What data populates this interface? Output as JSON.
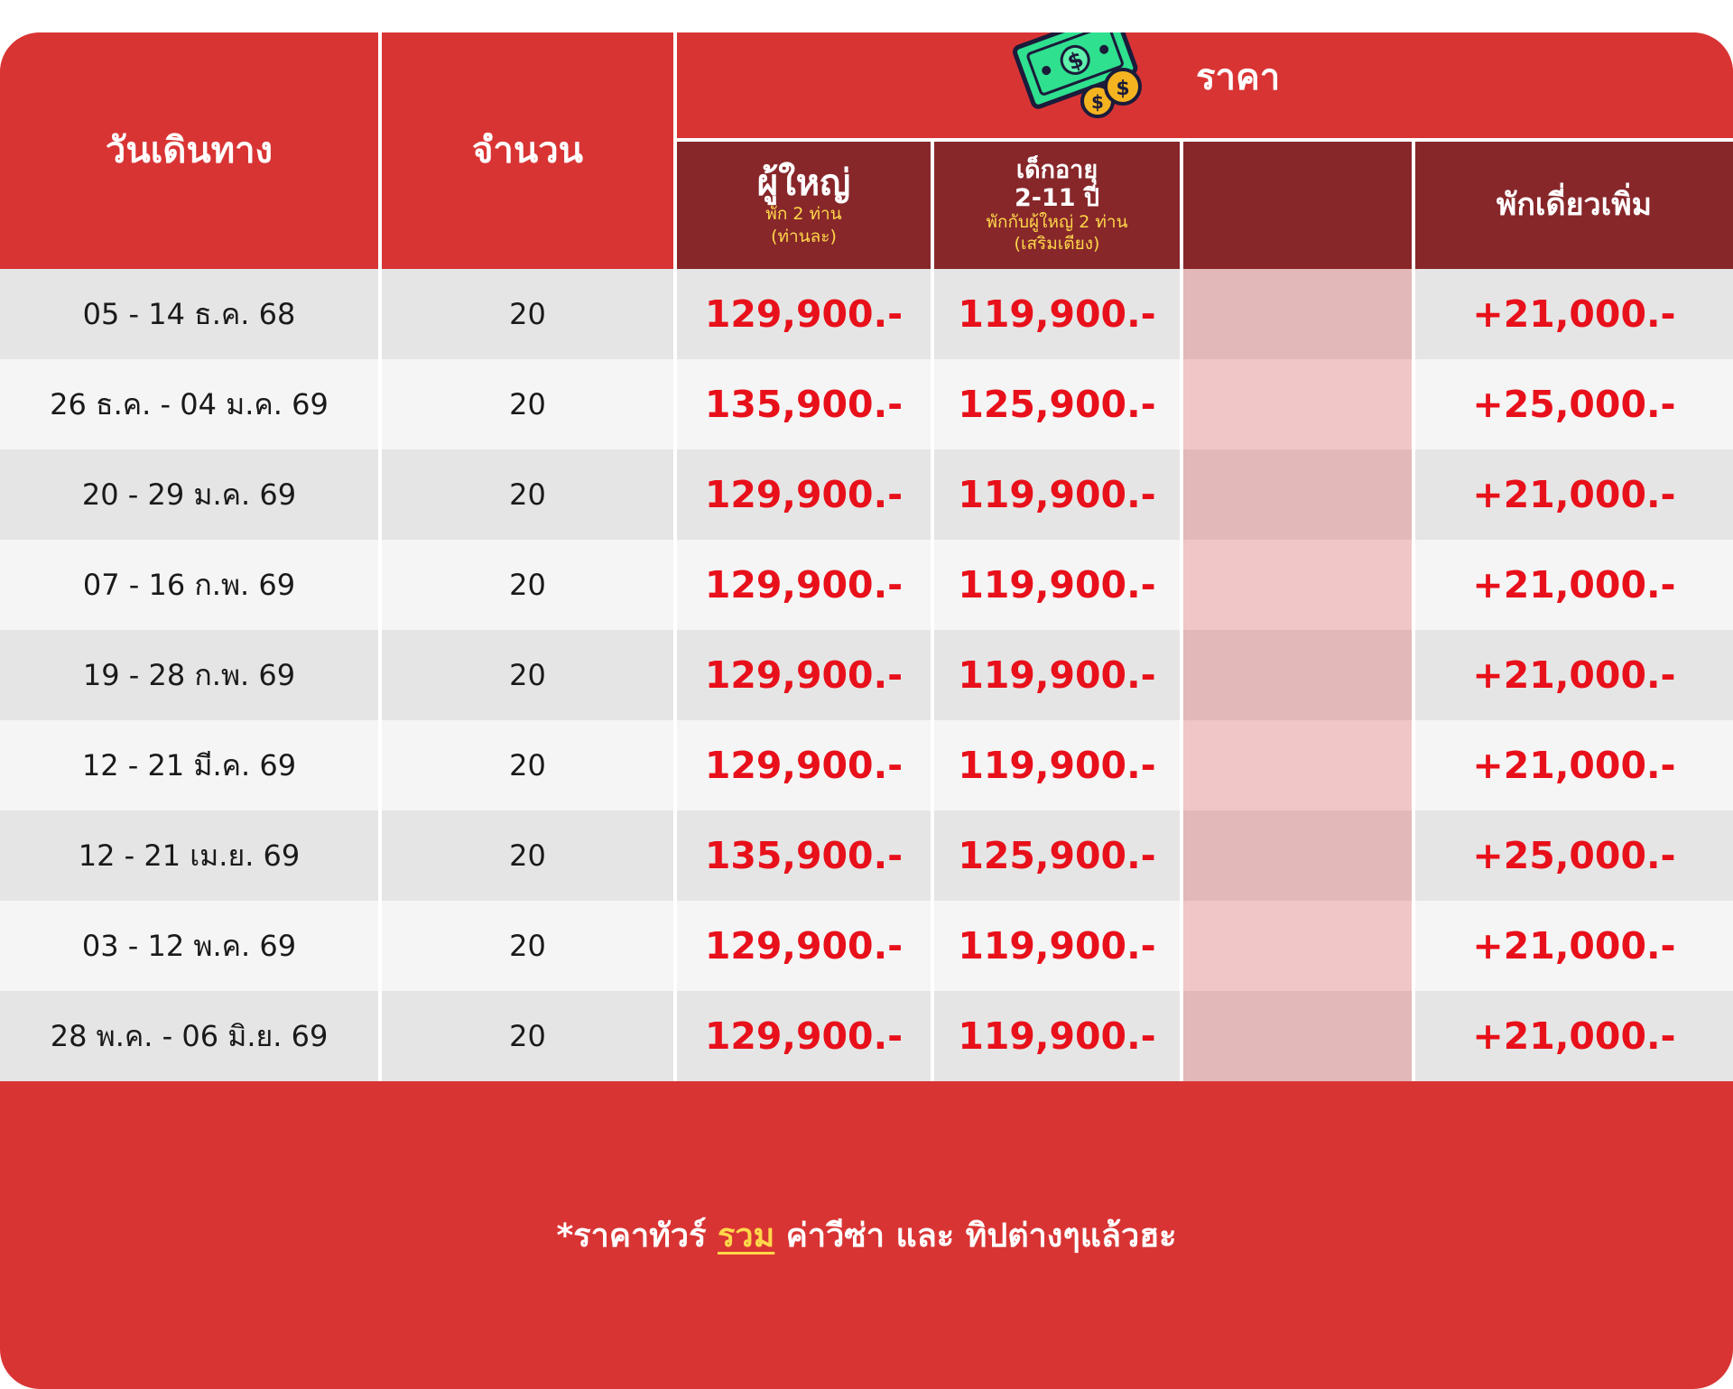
{
  "header": {
    "date_label": "วันเดินทาง",
    "seats_label": "จำนวน",
    "price_label": "ราคา",
    "adult": {
      "title": "ผู้ใหญ่",
      "line1": "พัก 2 ท่าน",
      "line2": "(ท่านละ)"
    },
    "child": {
      "title1": "เด็กอายุ",
      "title2": "2-11 ปี",
      "line1": "พักกับผู้ใหญ่ 2 ท่าน",
      "line2": "(เสริมเตียง)"
    },
    "blank": "",
    "single": {
      "title": "พักเดี่ยวเพิ่ม"
    }
  },
  "rows": [
    {
      "date": "05 - 14 ธ.ค. 68",
      "seats": "20",
      "adult": "129,900.-",
      "child": "119,900.-",
      "single": "+21,000.-"
    },
    {
      "date": "26 ธ.ค. - 04 ม.ค. 69",
      "seats": "20",
      "adult": "135,900.-",
      "child": "125,900.-",
      "single": "+25,000.-"
    },
    {
      "date": "20 - 29 ม.ค. 69",
      "seats": "20",
      "adult": "129,900.-",
      "child": "119,900.-",
      "single": "+21,000.-"
    },
    {
      "date": "07 - 16 ก.พ. 69",
      "seats": "20",
      "adult": "129,900.-",
      "child": "119,900.-",
      "single": "+21,000.-"
    },
    {
      "date": "19 - 28 ก.พ. 69",
      "seats": "20",
      "adult": "129,900.-",
      "child": "119,900.-",
      "single": "+21,000.-"
    },
    {
      "date": "12 - 21 มี.ค. 69",
      "seats": "20",
      "adult": "129,900.-",
      "child": "119,900.-",
      "single": "+21,000.-"
    },
    {
      "date": "12 - 21 เม.ย. 69",
      "seats": "20",
      "adult": "135,900.-",
      "child": "125,900.-",
      "single": "+25,000.-"
    },
    {
      "date": "03 - 12 พ.ค. 69",
      "seats": "20",
      "adult": "129,900.-",
      "child": "119,900.-",
      "single": "+21,000.-"
    },
    {
      "date": "28 พ.ค. - 06 มิ.ย. 69",
      "seats": "20",
      "adult": "129,900.-",
      "child": "119,900.-",
      "single": "+21,000.-"
    }
  ],
  "footer": {
    "prefix": "*ราคาทัวร์ ",
    "highlight": "รวม",
    "suffix": " ค่าวีซ่า และ ทิปต่างๆแล้วฮะ"
  },
  "icons": {
    "price_icon": "money-banknote-coins-icon"
  },
  "colors": {
    "header_red": "#d93434",
    "header_dark": "#87272a",
    "price_red": "#e8101a",
    "highlight_yellow": "#ffd84a"
  }
}
